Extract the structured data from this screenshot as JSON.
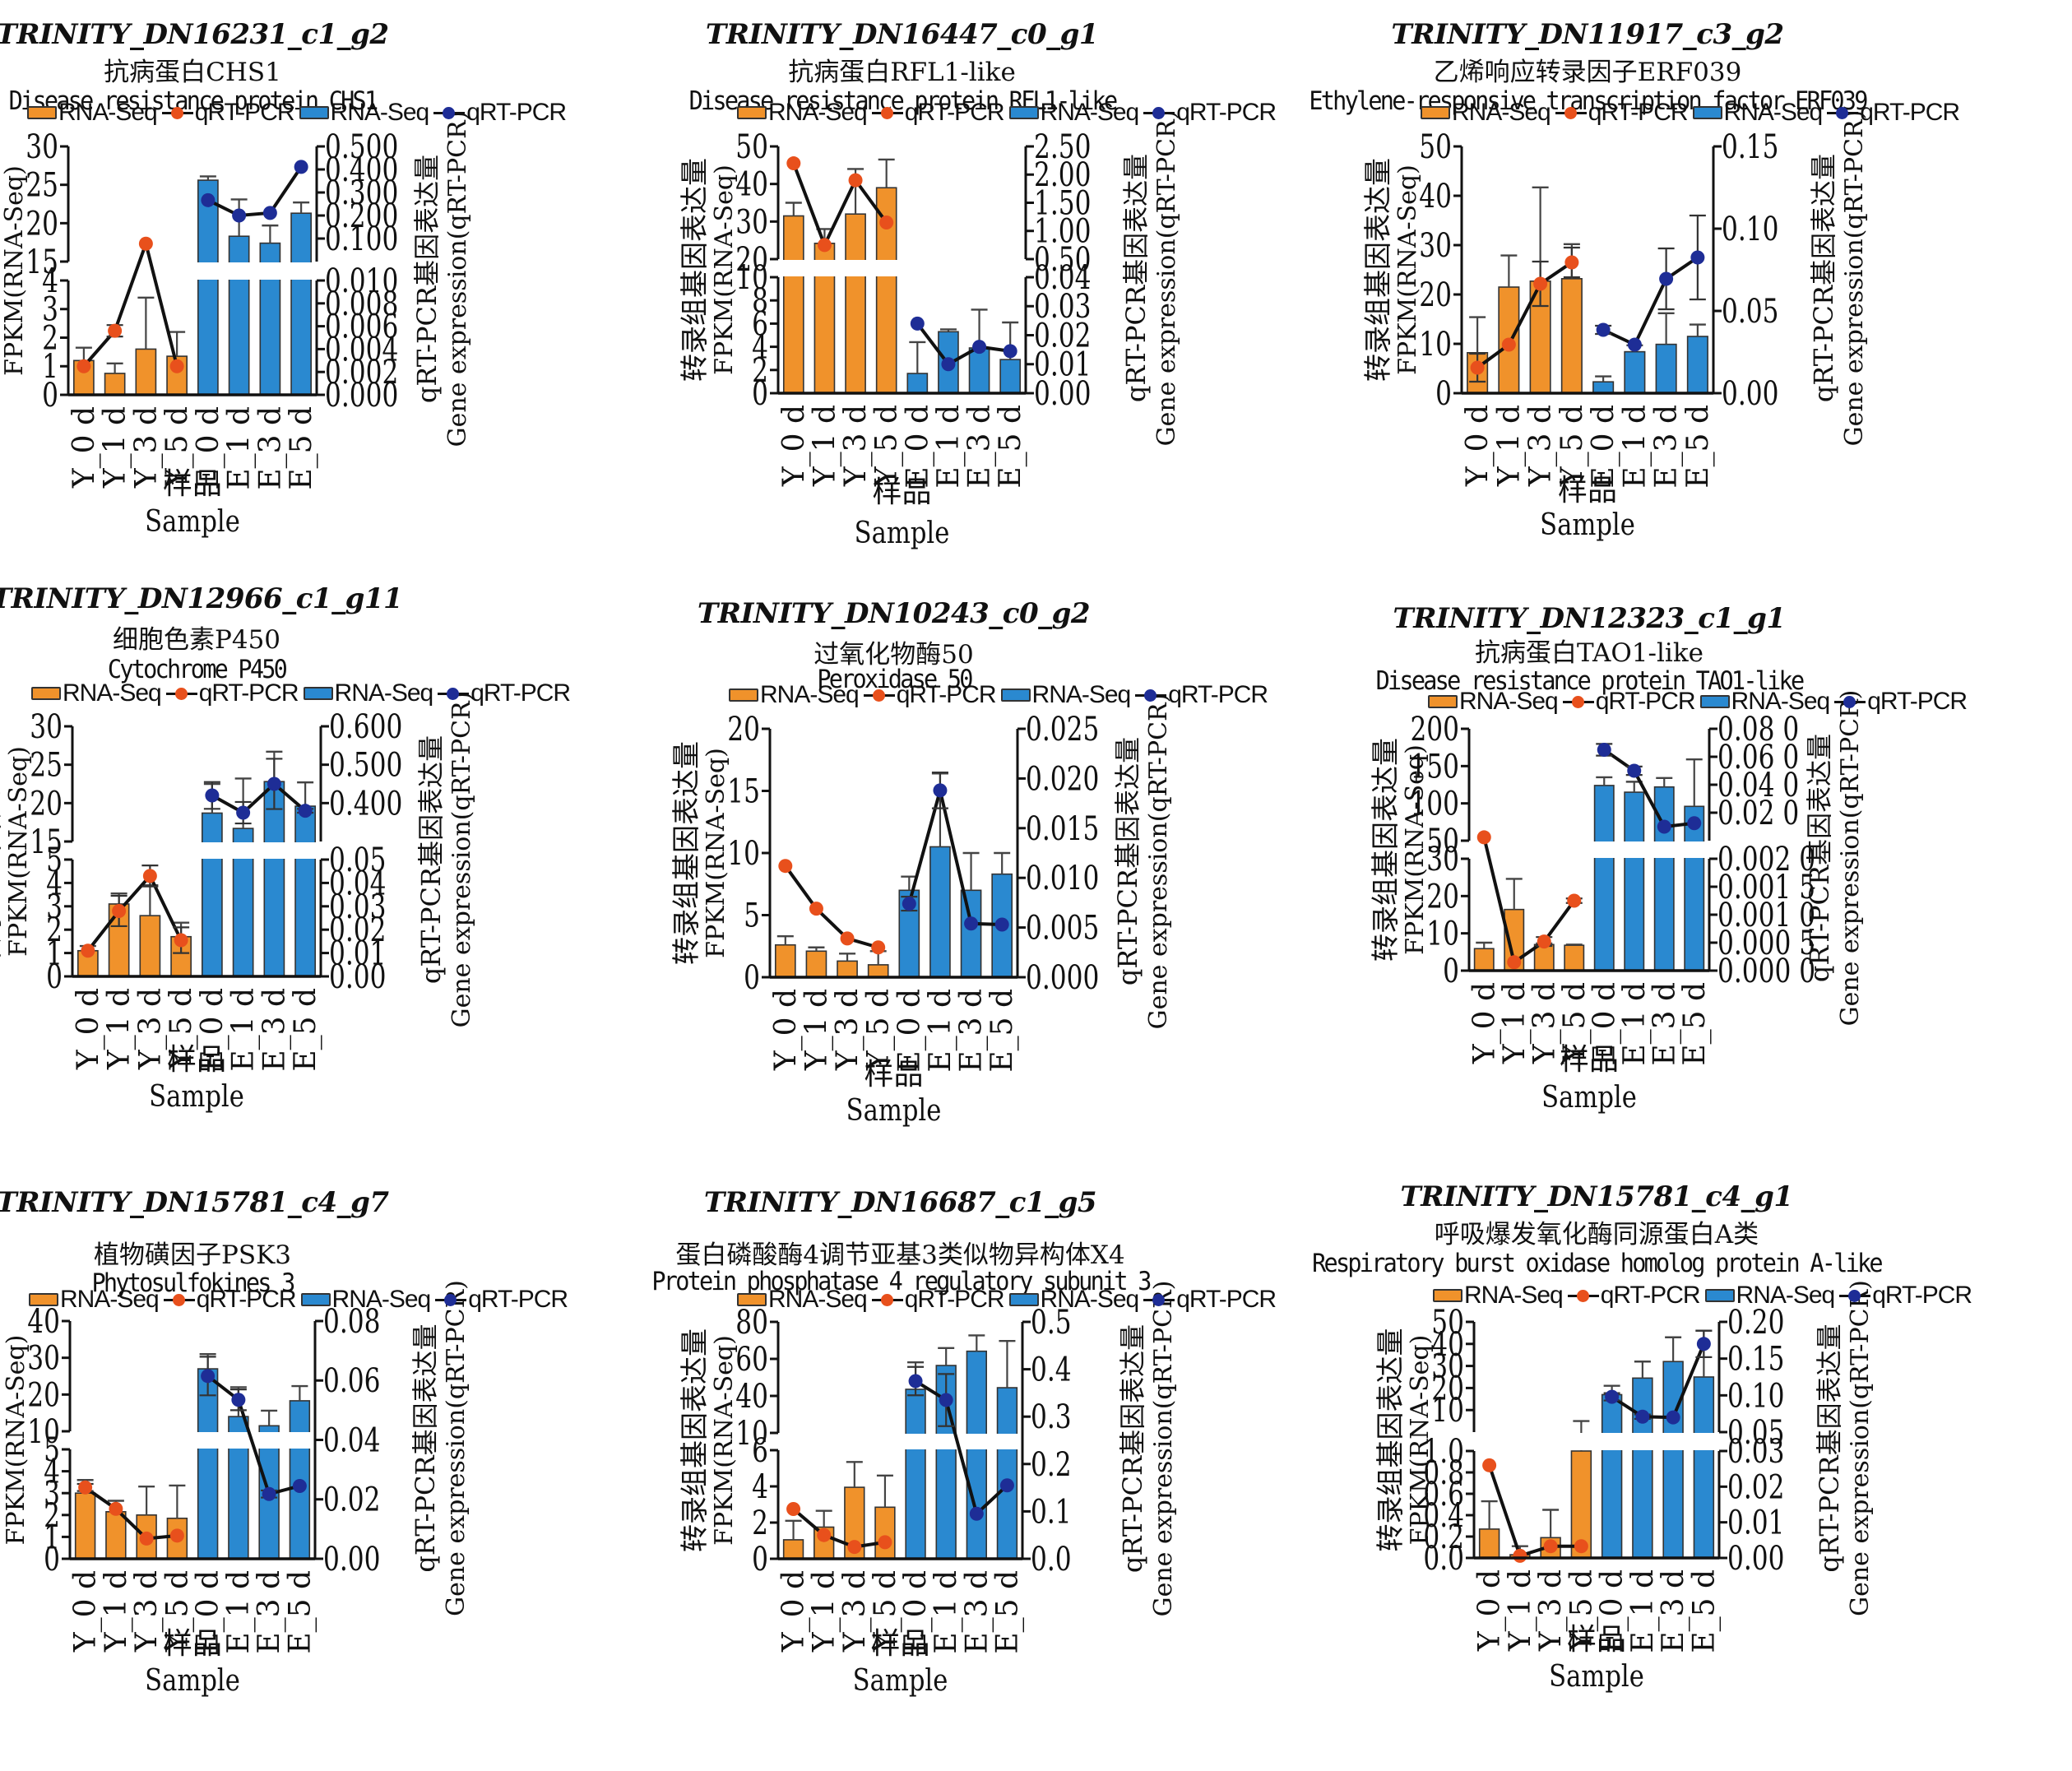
{
  "figure": {
    "common": {
      "legend": {
        "orange_bar": "RNA-Seq",
        "orange_line": "qRT-PCR",
        "blue_bar": "RNA-Seq",
        "blue_line": "qRT-PCR"
      },
      "left_ylabel_cn": "转录组基因表达量",
      "left_ylabel_en": "FPKM(RNA-Seq)",
      "right_ylabel_cn": "qRT-PCR基因表达量",
      "right_ylabel_en": "Gene expression(qRT-PCR)",
      "xlabel_cn": "样品",
      "xlabel_en": "Sample",
      "colors": {
        "orange_bar": "#F0922B",
        "blue_bar": "#2A89D0",
        "orange_marker": "#E8501C",
        "blue_marker": "#1E2D96",
        "line": "#111111"
      }
    }
  },
  "chart_data": [
    {
      "type": "bar",
      "gene_id": "TRINITY_DN16231_c1_g2",
      "name_cn": "抗病蛋白CHS1",
      "name_en": "Disease resistance protein CHS1",
      "categories": [
        "Y_0 d",
        "Y_1 d",
        "Y_3 d",
        "Y_5 d",
        "E_0 d",
        "E_1 d",
        "E_3 d",
        "E_5 d"
      ],
      "left_axis": {
        "lower": {
          "range": [
            0,
            4
          ],
          "ticks": [
            "0",
            "1",
            "2",
            "3",
            "4"
          ]
        },
        "upper": {
          "range": [
            15,
            30
          ],
          "ticks": [
            "15",
            "20",
            "25",
            "30"
          ]
        }
      },
      "right_axis": {
        "lower": {
          "range": [
            0,
            0.01
          ],
          "ticks": [
            "0.000",
            "0.002",
            "0.004",
            "0.006",
            "0.008",
            "0.010"
          ]
        },
        "upper": {
          "range": [
            0.05,
            0.5
          ],
          "ticks": [
            "0.100",
            "0.200",
            "0.300",
            "0.400",
            "0.500"
          ]
        }
      },
      "series": [
        {
          "name": "RNA-Seq",
          "kind": "bar",
          "values": [
            1.2,
            0.75,
            1.6,
            1.35,
            25.6,
            18.3,
            17.4,
            21.3
          ],
          "errors": [
            0.45,
            0.35,
            1.8,
            0.85,
            0.5,
            4.8,
            2.3,
            1.4
          ]
        },
        {
          "name": "qRT-PCR",
          "kind": "line",
          "values": [
            0.0025,
            0.0056,
            0.12,
            0.0025,
            0.29,
            0.23,
            0.24,
            0.42
          ],
          "errors": [
            0,
            0.0005,
            0,
            0,
            0,
            0,
            0,
            0
          ]
        }
      ]
    },
    {
      "type": "bar",
      "gene_id": "TRINITY_DN16447_c0_g1",
      "name_cn": "抗病蛋白RFL1-like",
      "name_en": "Disease resistance protein RFL1-like",
      "categories": [
        "Y_0 d",
        "Y_1 d",
        "Y_3 d",
        "Y_5 d",
        "E_0 d",
        "E_1 d",
        "E_3 d",
        "E_5 d"
      ],
      "left_axis": {
        "lower": {
          "range": [
            0,
            10
          ],
          "ticks": [
            "0",
            "2",
            "4",
            "6",
            "8",
            "10"
          ]
        },
        "upper": {
          "range": [
            20,
            50
          ],
          "ticks": [
            "20",
            "30",
            "40",
            "50"
          ]
        }
      },
      "right_axis": {
        "lower": {
          "range": [
            0,
            0.04
          ],
          "ticks": [
            "0.00",
            "0.01",
            "0.02",
            "0.03",
            "0.04"
          ]
        },
        "upper": {
          "range": [
            0.5,
            2.5
          ],
          "ticks": [
            "0.50",
            "1.00",
            "1.50",
            "2.00",
            "2.50"
          ]
        }
      },
      "series": [
        {
          "name": "RNA-Seq",
          "kind": "bar",
          "values": [
            31.5,
            24.2,
            32,
            39,
            1.7,
            5.3,
            3.9,
            2.9
          ],
          "errors": [
            3.5,
            3.8,
            12,
            7.5,
            2.7,
            0.2,
            3.3,
            3.2
          ]
        },
        {
          "name": "qRT-PCR",
          "kind": "line",
          "values": [
            2.2,
            0.75,
            1.9,
            1.15,
            0.024,
            0.01,
            0.016,
            0.0145
          ],
          "errors": [
            0,
            0,
            0,
            0,
            0,
            0,
            0,
            0
          ]
        }
      ]
    },
    {
      "type": "bar",
      "gene_id": "TRINITY_DN11917_c3_g2",
      "name_cn": "乙烯响应转录因子ERF039",
      "name_en": "Ethylene-responsive transcription factor ERF039",
      "categories": [
        "Y_0 d",
        "Y_1 d",
        "Y_3 d",
        "Y_5 d",
        "E_0 d",
        "E_1 d",
        "E_3 d",
        "E_5 d"
      ],
      "left_axis": {
        "single": {
          "range": [
            0,
            50
          ],
          "ticks": [
            "0",
            "10",
            "20",
            "30",
            "40",
            "50"
          ]
        }
      },
      "right_axis": {
        "single": {
          "range": [
            0,
            0.15
          ],
          "ticks": [
            "0.00",
            "0.05",
            "0.10",
            "0.15"
          ]
        }
      },
      "series": [
        {
          "name": "RNA-Seq",
          "kind": "bar",
          "values": [
            8.2,
            21.5,
            22.7,
            23.2,
            2.3,
            8.4,
            9.9,
            11.5
          ],
          "errors": [
            7.2,
            6.4,
            19,
            7,
            1.1,
            1.3,
            6.3,
            2.4
          ]
        },
        {
          "name": "qRT-PCR",
          "kind": "line",
          "values": [
            0.0155,
            0.0295,
            0.0665,
            0.0795,
            0.0385,
            0.0295,
            0.0695,
            0.0825
          ],
          "errors": [
            0.0085,
            0,
            0.0135,
            0.009,
            0.0025,
            0,
            0.0185,
            0.0255
          ]
        }
      ]
    },
    {
      "type": "bar",
      "gene_id": "TRINITY_DN12966_c1_g11",
      "name_cn": "细胞色素P450",
      "name_en": "Cytochrome P450",
      "categories": [
        "Y_0 d",
        "Y_1 d",
        "Y_3 d",
        "Y_5 d",
        "E_0 d",
        "E_1 d",
        "E_3 d",
        "E_5 d"
      ],
      "left_axis": {
        "lower": {
          "range": [
            0,
            5
          ],
          "ticks": [
            "0",
            "1",
            "2",
            "3",
            "4",
            "5"
          ]
        },
        "upper": {
          "range": [
            15,
            30
          ],
          "ticks": [
            "15",
            "20",
            "25",
            "30"
          ]
        }
      },
      "right_axis": {
        "lower": {
          "range": [
            0,
            0.05
          ],
          "ticks": [
            "0.00",
            "0.01",
            "0.02",
            "0.03",
            "0.04",
            "0.05"
          ]
        },
        "upper": {
          "range": [
            0.3,
            0.6
          ],
          "ticks": [
            "0.400",
            "0.500",
            "0.600"
          ]
        }
      },
      "series": [
        {
          "name": "RNA-Seq",
          "kind": "bar",
          "values": [
            1.1,
            3.1,
            2.6,
            1.7,
            18.7,
            16.7,
            22.8,
            19.6
          ],
          "errors": [
            0.2,
            0.45,
            1.3,
            0.6,
            3.8,
            6.5,
            3.9,
            3.1
          ]
        },
        {
          "name": "qRT-PCR",
          "kind": "line",
          "values": [
            0.011,
            0.028,
            0.043,
            0.0155,
            0.42,
            0.375,
            0.45,
            0.38
          ],
          "errors": [
            0,
            0.0065,
            0.0045,
            0.0055,
            0.035,
            0.028,
            0.0655,
            0.005
          ]
        }
      ]
    },
    {
      "type": "bar",
      "gene_id": "TRINITY_DN10243_c0_g2",
      "name_cn": "过氧化物酶50",
      "name_en": "Peroxidase 50",
      "categories": [
        "Y_0 d",
        "Y_1 d",
        "Y_3 d",
        "Y_5 d",
        "E_0 d",
        "E_1 d",
        "E_3 d",
        "E_5 d"
      ],
      "left_axis": {
        "single": {
          "range": [
            0,
            20
          ],
          "ticks": [
            "0",
            "5",
            "10",
            "15",
            "20"
          ]
        }
      },
      "right_axis": {
        "single": {
          "range": [
            0,
            0.025
          ],
          "ticks": [
            "0.000",
            "0.005",
            "0.010",
            "0.015",
            "0.020",
            "0.025"
          ]
        }
      },
      "series": [
        {
          "name": "RNA-Seq",
          "kind": "bar",
          "values": [
            2.6,
            2.1,
            1.3,
            1.0,
            7.0,
            10.5,
            7.0,
            8.3
          ],
          "errors": [
            0.7,
            0.3,
            0.6,
            1.1,
            1.1,
            5.9,
            3.0,
            1.7
          ]
        },
        {
          "name": "qRT-PCR",
          "kind": "line",
          "values": [
            0.0112,
            0.0069,
            0.0039,
            0.003,
            0.0074,
            0.0188,
            0.0054,
            0.0053
          ],
          "errors": [
            0,
            0,
            0,
            0,
            0.0007,
            0.0018,
            0,
            0
          ]
        }
      ]
    },
    {
      "type": "bar",
      "gene_id": "TRINITY_DN12323_c1_g1",
      "name_cn": "抗病蛋白TAO1-like",
      "name_en": "Disease resistance protein TAO1-like",
      "categories": [
        "Y_0 d",
        "Y_1 d",
        "Y_3 d",
        "Y_5 d",
        "E_0 d",
        "E_1 d",
        "E_3 d",
        "E_5 d"
      ],
      "left_axis": {
        "lower": {
          "range": [
            0,
            30
          ],
          "ticks": [
            "0",
            "10",
            "20",
            "30"
          ]
        },
        "upper": {
          "range": [
            50,
            200
          ],
          "ticks": [
            "50",
            "100",
            "150",
            "200"
          ]
        }
      },
      "right_axis": {
        "lower": {
          "range": [
            0,
            0.002
          ],
          "ticks": [
            "0.000 0",
            "0.000 5",
            "0.001 0",
            "0.001 5",
            "0.002 0"
          ]
        },
        "upper": {
          "range": [
            0.0,
            0.08
          ],
          "ticks": [
            "0.02 0",
            "0.04 0",
            "0.06 0",
            "0.08 0"
          ]
        }
      },
      "series": [
        {
          "name": "RNA-Seq",
          "kind": "bar",
          "values": [
            5.9,
            16.4,
            7.0,
            6.8,
            124,
            115,
            122,
            96
          ],
          "errors": [
            1.6,
            8.2,
            0.3,
            0.2,
            11,
            14,
            12,
            63
          ]
        },
        {
          "name": "qRT-PCR",
          "kind": "line",
          "values": [
            0.0024,
            0.00015,
            0.00052,
            0.00125,
            0.065,
            0.05,
            0.01,
            0.0125
          ],
          "errors": [
            0,
            0,
            8e-05,
            4e-05,
            0.0042,
            0.003,
            0,
            0
          ]
        }
      ]
    },
    {
      "type": "bar",
      "gene_id": "TRINITY_DN15781_c4_g7",
      "name_cn": "植物磺因子PSK3",
      "name_en": "Phytosulfokines 3",
      "categories": [
        "Y_0 d",
        "Y_1 d",
        "Y_3 d",
        "Y_5 d",
        "E_0 d",
        "E_1 d",
        "E_3 d",
        "E_5 d"
      ],
      "left_axis": {
        "lower": {
          "range": [
            0,
            5
          ],
          "ticks": [
            "0",
            "1",
            "2",
            "3",
            "4",
            "5"
          ]
        },
        "upper": {
          "range": [
            10,
            40
          ],
          "ticks": [
            "10",
            "20",
            "30",
            "40"
          ]
        }
      },
      "right_axis": {
        "single": {
          "range": [
            0,
            0.08
          ],
          "ticks": [
            "0.00",
            "0.02",
            "0.04",
            "0.06",
            "0.08"
          ]
        }
      },
      "series": [
        {
          "name": "RNA-Seq",
          "kind": "bar",
          "values": [
            3.0,
            2.15,
            2.0,
            1.85,
            27,
            14,
            11.5,
            18.3
          ],
          "errors": [
            0.6,
            0.5,
            1.3,
            1.5,
            4,
            8,
            4.1,
            4
          ]
        },
        {
          "name": "qRT-PCR",
          "kind": "line",
          "values": [
            0.024,
            0.0168,
            0.0068,
            0.0078,
            0.0615,
            0.0535,
            0.0218,
            0.0245
          ],
          "errors": [
            0.0012,
            0,
            0,
            0,
            0.0065,
            0.0035,
            0.0012,
            0
          ]
        }
      ]
    },
    {
      "type": "bar",
      "gene_id": "TRINITY_DN16687_c1_g5",
      "name_cn": "蛋白磷酸酶4调节亚基3类似物异构体X4",
      "name_en": "Protein phosphatase 4 regulatory subunit 3",
      "categories": [
        "Y_0 d",
        "Y_1 d",
        "Y_3 d",
        "Y_5 d",
        "E_0 d",
        "E_1 d",
        "E_3 d",
        "E_5 d"
      ],
      "left_axis": {
        "lower": {
          "range": [
            0,
            6
          ],
          "ticks": [
            "0",
            "2",
            "4",
            "6"
          ]
        },
        "upper": {
          "range": [
            10,
            80
          ],
          "ticks": [
            "10",
            "40",
            "60",
            "80"
          ]
        }
      },
      "right_axis": {
        "single": {
          "range": [
            0,
            0.5
          ],
          "ticks": [
            "0.0",
            "0.1",
            "0.2",
            "0.3",
            "0.4",
            "0.5"
          ]
        }
      },
      "series": [
        {
          "name": "RNA-Seq",
          "kind": "bar",
          "values": [
            1.05,
            1.75,
            3.95,
            2.85,
            37.5,
            52.5,
            61.5,
            38.5
          ],
          "errors": [
            1.05,
            0.9,
            1.4,
            1.75,
            17,
            11,
            10,
            29.5
          ]
        },
        {
          "name": "qRT-PCR",
          "kind": "line",
          "values": [
            0.105,
            0.05,
            0.025,
            0.035,
            0.375,
            0.335,
            0.095,
            0.155
          ],
          "errors": [
            0,
            0,
            0,
            0,
            0.03,
            0.055,
            0,
            0
          ]
        }
      ]
    },
    {
      "type": "bar",
      "gene_id": "TRINITY_DN15781_c4_g1",
      "name_cn": "呼吸爆发氧化酶同源蛋白A类",
      "name_en": "Respiratory burst oxidase homolog protein A-like",
      "categories": [
        "Y_0 d",
        "Y_1 d",
        "Y_3 d",
        "Y_5 d",
        "E_0 d",
        "E_1 d",
        "E_3 d",
        "E_5 d"
      ],
      "left_axis": {
        "lower": {
          "range": [
            0,
            1.0
          ],
          "ticks": [
            "0.0",
            "0.2",
            "0.4",
            "0.6",
            "0.8",
            "1.0"
          ]
        },
        "upper": {
          "range": [
            0,
            50
          ],
          "ticks": [
            "10",
            "20",
            "30",
            "40",
            "50"
          ]
        }
      },
      "right_axis": {
        "lower": {
          "range": [
            0,
            0.03
          ],
          "ticks": [
            "0.00",
            "0.01",
            "0.02",
            "0.03"
          ]
        },
        "upper": {
          "range": [
            0.05,
            0.2
          ],
          "ticks": [
            "0.05",
            "0.10",
            "0.15",
            "0.20"
          ]
        }
      },
      "series": [
        {
          "name": "RNA-Seq",
          "kind": "bar",
          "values": [
            0.27,
            0.03,
            0.19,
            1.0,
            17,
            24.5,
            32,
            25
          ],
          "errors": [
            0.26,
            0.08,
            0.26,
            4,
            4,
            7.5,
            11,
            21
          ]
        },
        {
          "name": "qRT-PCR",
          "kind": "line",
          "values": [
            0.026,
            0.0006,
            0.0033,
            0.0033,
            0.098,
            0.071,
            0.07,
            0.17
          ],
          "errors": [
            0,
            0,
            0,
            0,
            0.005,
            0.003,
            0,
            0.018
          ]
        }
      ]
    }
  ]
}
